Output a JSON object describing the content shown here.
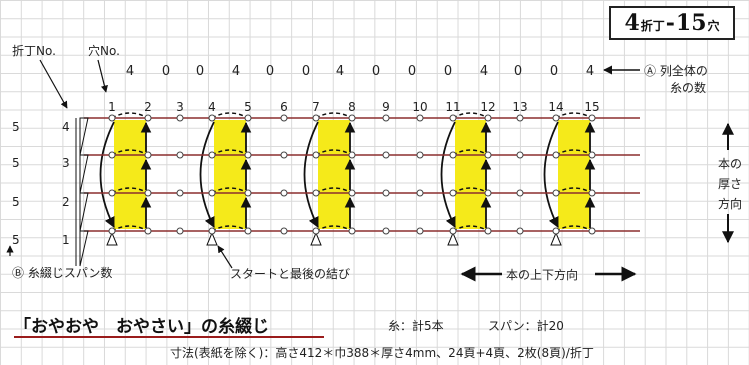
{
  "title": {
    "number": "4",
    "fold": "折丁",
    "dash": "-",
    "holes": "15",
    "hole": "穴"
  },
  "labels": {
    "signature_no": "折丁No.",
    "hole_no": "穴No.",
    "a_note_1": "Ⓐ 列全体の",
    "a_note_2": "糸の数",
    "b_note": "Ⓑ 糸綴じスパン数",
    "start_end": "スタートと最後の結び",
    "direction_updown": "本の上下方向",
    "thickness": [
      "本の",
      "厚さ",
      "方向"
    ]
  },
  "hole_counts": [
    "4",
    "0",
    "0",
    "4",
    "0",
    "0",
    "4",
    "0",
    "0",
    "0",
    "4",
    "0",
    "0",
    "4"
  ],
  "hole_numbers": [
    "1",
    "2",
    "3",
    "4",
    "5",
    "6",
    "7",
    "8",
    "9",
    "10",
    "11",
    "12",
    "13",
    "14",
    "15"
  ],
  "rows": [
    {
      "signature": "4",
      "span": "5"
    },
    {
      "signature": "3",
      "span": "5"
    },
    {
      "signature": "2",
      "span": "5"
    },
    {
      "signature": "1",
      "span": "5"
    }
  ],
  "footer": {
    "book_title": "「おやおや　おやさい」の糸綴じ",
    "thread": "糸：計5本",
    "span": "スパン：計20",
    "dimensions": "寸法(表紙を除く)：高さ412＊巾388＊厚さ4mm、24頁+4頁、2枚(8頁)/折丁"
  },
  "colors": {
    "highlight": "#f5ea1a",
    "line": "#8b2e2e",
    "accent": "#9a1c1c"
  }
}
